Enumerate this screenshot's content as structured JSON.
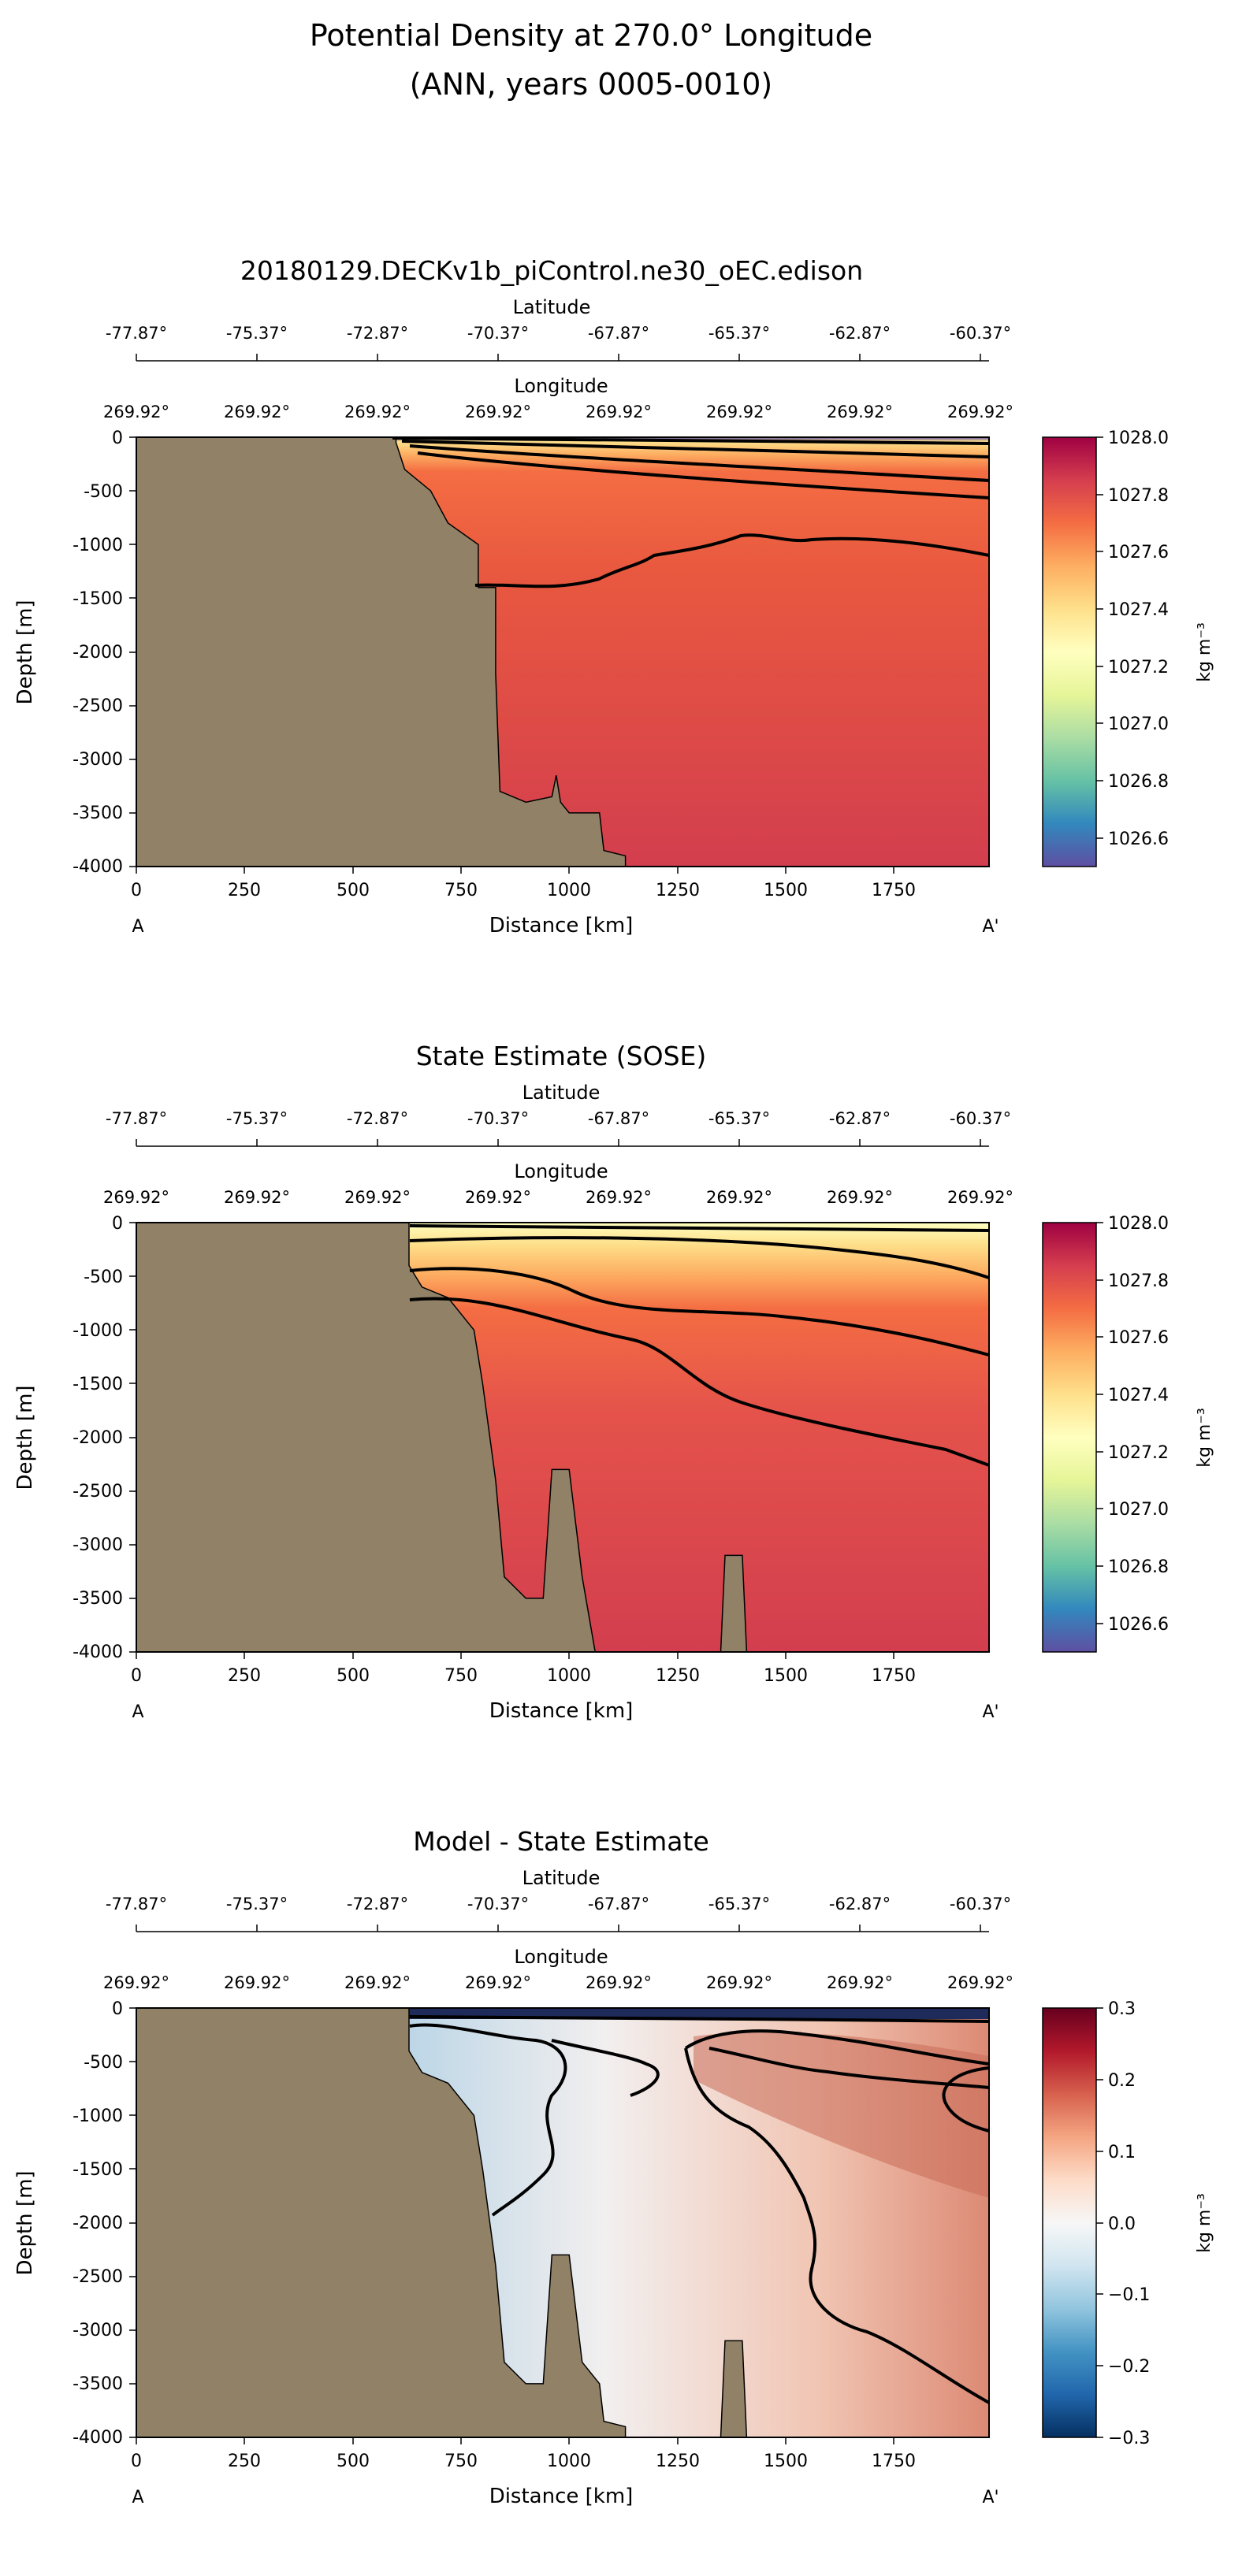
{
  "figure": {
    "title_line1": "Potential Density at 270.0° Longitude",
    "title_line2": "(ANN, years 0005-0010)"
  },
  "chart_data": [
    {
      "type": "heatmap",
      "title": "20180129.DECKv1b_piControl.ne30_oEC.edison",
      "xlabel": "Distance [km]",
      "ylabel": "Depth [m]",
      "xlim": [
        0,
        1970
      ],
      "ylim": [
        -4000,
        0
      ],
      "x_ticks": [
        0,
        250,
        500,
        750,
        1000,
        1250,
        1500,
        1750
      ],
      "y_ticks": [
        0,
        -500,
        -1000,
        -1500,
        -2000,
        -2500,
        -3000,
        -3500,
        -4000
      ],
      "section_start": "A",
      "section_end": "A'",
      "secondary_axes": {
        "latitude_label": "Latitude",
        "latitude_ticks": [
          "-77.87°",
          "-75.37°",
          "-72.87°",
          "-70.37°",
          "-67.87°",
          "-65.37°",
          "-62.87°",
          "-60.37°"
        ],
        "longitude_label": "Longitude",
        "longitude_ticks": [
          "269.92°",
          "269.92°",
          "269.92°",
          "269.92°",
          "269.92°",
          "269.92°",
          "269.92°",
          "269.92°"
        ]
      },
      "colorbar": {
        "label": "kg m⁻³",
        "colormap": "Spectral_r",
        "range": [
          1026.5,
          1028.0
        ],
        "ticks": [
          "1028.0",
          "1027.8",
          "1027.6",
          "1027.4",
          "1027.2",
          "1027.0",
          "1026.8",
          "1026.6"
        ]
      },
      "contour_levels": [
        1027.2,
        1027.4,
        1027.6,
        1027.7,
        1027.8
      ],
      "deep_value": 1027.85,
      "land_color": "#918167",
      "bathymetry_km_m": [
        [
          0,
          0
        ],
        [
          600,
          0
        ],
        [
          600,
          -50
        ],
        [
          620,
          -300
        ],
        [
          680,
          -500
        ],
        [
          700,
          -650
        ],
        [
          720,
          -800
        ],
        [
          790,
          -1000
        ],
        [
          790,
          -1400
        ],
        [
          830,
          -1400
        ],
        [
          830,
          -2200
        ],
        [
          840,
          -3300
        ],
        [
          900,
          -3400
        ],
        [
          960,
          -3350
        ],
        [
          970,
          -3150
        ],
        [
          980,
          -3400
        ],
        [
          1000,
          -3500
        ],
        [
          1070,
          -3500
        ],
        [
          1080,
          -3850
        ],
        [
          1130,
          -3900
        ],
        [
          1130,
          -4000
        ]
      ]
    },
    {
      "type": "heatmap",
      "title": "State Estimate (SOSE)",
      "xlabel": "Distance [km]",
      "ylabel": "Depth [m]",
      "xlim": [
        0,
        1970
      ],
      "ylim": [
        -4000,
        0
      ],
      "x_ticks": [
        0,
        250,
        500,
        750,
        1000,
        1250,
        1500,
        1750
      ],
      "y_ticks": [
        0,
        -500,
        -1000,
        -1500,
        -2000,
        -2500,
        -3000,
        -3500,
        -4000
      ],
      "section_start": "A",
      "section_end": "A'",
      "secondary_axes": {
        "latitude_label": "Latitude",
        "latitude_ticks": [
          "-77.87°",
          "-75.37°",
          "-72.87°",
          "-70.37°",
          "-67.87°",
          "-65.37°",
          "-62.87°",
          "-60.37°"
        ],
        "longitude_label": "Longitude",
        "longitude_ticks": [
          "269.92°",
          "269.92°",
          "269.92°",
          "269.92°",
          "269.92°",
          "269.92°",
          "269.92°",
          "269.92°"
        ]
      },
      "colorbar": {
        "label": "kg m⁻³",
        "colormap": "Spectral_r",
        "range": [
          1026.5,
          1028.0
        ],
        "ticks": [
          "1028.0",
          "1027.8",
          "1027.6",
          "1027.4",
          "1027.2",
          "1027.0",
          "1026.8",
          "1026.6"
        ]
      },
      "contour_levels": [
        1027.2,
        1027.4,
        1027.6,
        1027.7,
        1027.8
      ],
      "deep_value": 1027.85,
      "land_color": "#918167",
      "bathymetry_km_m": [
        [
          0,
          0
        ],
        [
          630,
          0
        ],
        [
          630,
          -400
        ],
        [
          660,
          -600
        ],
        [
          720,
          -700
        ],
        [
          780,
          -1000
        ],
        [
          800,
          -1500
        ],
        [
          830,
          -2400
        ],
        [
          850,
          -3300
        ],
        [
          900,
          -3500
        ],
        [
          940,
          -3500
        ],
        [
          960,
          -2300
        ],
        [
          1000,
          -2300
        ],
        [
          1030,
          -3300
        ],
        [
          1060,
          -4000
        ],
        [
          1350,
          -4000
        ],
        [
          1360,
          -3100
        ],
        [
          1400,
          -3100
        ],
        [
          1410,
          -4000
        ]
      ]
    },
    {
      "type": "heatmap",
      "title": "Model - State Estimate",
      "xlabel": "Distance [km]",
      "ylabel": "Depth [m]",
      "xlim": [
        0,
        1970
      ],
      "ylim": [
        -4000,
        0
      ],
      "x_ticks": [
        0,
        250,
        500,
        750,
        1000,
        1250,
        1500,
        1750
      ],
      "y_ticks": [
        0,
        -500,
        -1000,
        -1500,
        -2000,
        -2500,
        -3000,
        -3500,
        -4000
      ],
      "section_start": "A",
      "section_end": "A'",
      "secondary_axes": {
        "latitude_label": "Latitude",
        "latitude_ticks": [
          "-77.87°",
          "-75.37°",
          "-72.87°",
          "-70.37°",
          "-67.87°",
          "-65.37°",
          "-62.87°",
          "-60.37°"
        ],
        "longitude_label": "Longitude",
        "longitude_ticks": [
          "269.92°",
          "269.92°",
          "269.92°",
          "269.92°",
          "269.92°",
          "269.92°",
          "269.92°",
          "269.92°"
        ]
      },
      "colorbar": {
        "label": "kg m⁻³",
        "colormap": "RdBu_r",
        "range": [
          -0.3,
          0.3
        ],
        "ticks": [
          "0.3",
          "0.2",
          "0.1",
          "0.0",
          "−0.1",
          "−0.2",
          "−0.3"
        ]
      },
      "contour_levels": [
        -0.05,
        0.0,
        0.05,
        0.1
      ],
      "land_color": "#918167",
      "bathymetry_km_m": [
        [
          0,
          0
        ],
        [
          630,
          0
        ],
        [
          630,
          -400
        ],
        [
          660,
          -600
        ],
        [
          720,
          -700
        ],
        [
          780,
          -1000
        ],
        [
          800,
          -1500
        ],
        [
          830,
          -2400
        ],
        [
          850,
          -3300
        ],
        [
          900,
          -3500
        ],
        [
          940,
          -3500
        ],
        [
          960,
          -2300
        ],
        [
          1000,
          -2300
        ],
        [
          1030,
          -3300
        ],
        [
          1070,
          -3500
        ],
        [
          1080,
          -3850
        ],
        [
          1130,
          -3900
        ],
        [
          1130,
          -4000
        ],
        [
          1350,
          -4000
        ],
        [
          1360,
          -3100
        ],
        [
          1400,
          -3100
        ],
        [
          1410,
          -4000
        ]
      ]
    }
  ]
}
